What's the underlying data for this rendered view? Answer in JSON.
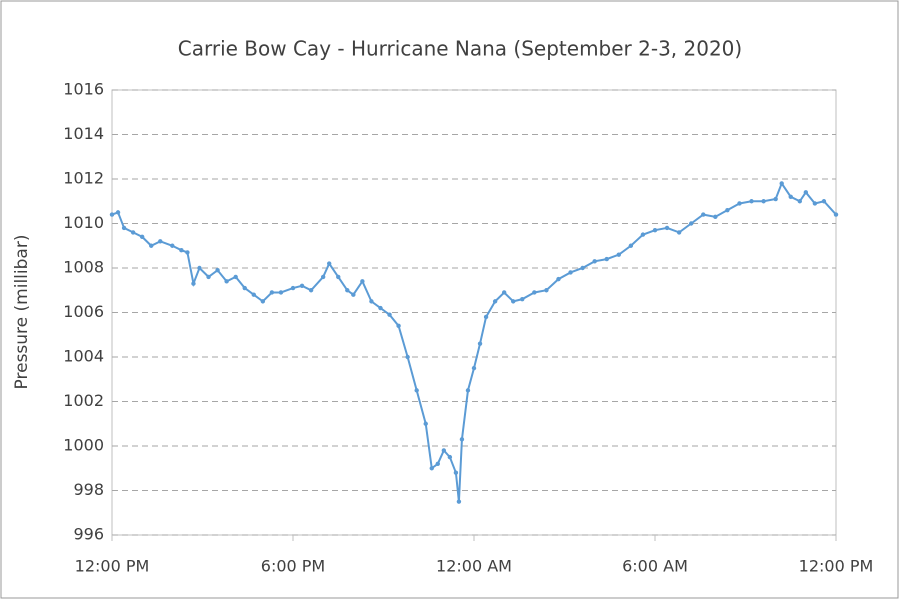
{
  "chart_data": {
    "type": "line",
    "title": "Carrie Bow Cay - Hurricane Nana (September 2-3, 2020)",
    "y_label": "Pressure (millibar)",
    "x": [
      0,
      0.2,
      0.4,
      0.7,
      1.0,
      1.3,
      1.6,
      2.0,
      2.3,
      2.5,
      2.7,
      2.9,
      3.2,
      3.5,
      3.8,
      4.1,
      4.4,
      4.7,
      5.0,
      5.3,
      5.6,
      6.0,
      6.3,
      6.6,
      7.0,
      7.2,
      7.5,
      7.8,
      8.0,
      8.3,
      8.6,
      8.9,
      9.2,
      9.5,
      9.8,
      10.1,
      10.4,
      10.6,
      10.8,
      11.0,
      11.2,
      11.4,
      11.5,
      11.6,
      11.8,
      12.0,
      12.2,
      12.4,
      12.7,
      13.0,
      13.3,
      13.6,
      14.0,
      14.4,
      14.8,
      15.2,
      15.6,
      16.0,
      16.4,
      16.8,
      17.2,
      17.6,
      18.0,
      18.4,
      18.8,
      19.2,
      19.6,
      20.0,
      20.4,
      20.8,
      21.2,
      21.6,
      22.0,
      22.2,
      22.5,
      22.8,
      23.0,
      23.3,
      23.6,
      24.0
    ],
    "series": [
      {
        "name": "Pressure",
        "color": "#5b9bd5",
        "values": [
          1010.4,
          1010.5,
          1009.8,
          1009.6,
          1009.4,
          1009.0,
          1009.2,
          1009.0,
          1008.8,
          1008.7,
          1007.3,
          1008.0,
          1007.6,
          1007.9,
          1007.4,
          1007.6,
          1007.1,
          1006.8,
          1006.5,
          1006.9,
          1006.9,
          1007.1,
          1007.2,
          1007.0,
          1007.6,
          1008.2,
          1007.6,
          1007.0,
          1006.8,
          1007.4,
          1006.5,
          1006.2,
          1005.9,
          1005.4,
          1004.0,
          1002.5,
          1001.0,
          999.0,
          999.2,
          999.8,
          999.5,
          998.8,
          997.5,
          1000.3,
          1002.5,
          1003.5,
          1004.6,
          1005.8,
          1006.5,
          1006.9,
          1006.5,
          1006.6,
          1006.9,
          1007.0,
          1007.5,
          1007.8,
          1008.0,
          1008.3,
          1008.4,
          1008.6,
          1009.0,
          1009.5,
          1009.7,
          1009.8,
          1009.6,
          1010.0,
          1010.4,
          1010.3,
          1010.6,
          1010.9,
          1011.0,
          1011.0,
          1011.1,
          1011.8,
          1011.2,
          1011.0,
          1011.4,
          1010.9,
          1011.0,
          1010.4
        ]
      }
    ],
    "xlim": [
      0,
      24
    ],
    "xticks": [
      {
        "value": 0,
        "label": "12:00 PM"
      },
      {
        "value": 6,
        "label": "6:00 PM"
      },
      {
        "value": 12,
        "label": "12:00 AM"
      },
      {
        "value": 18,
        "label": "6:00 AM"
      },
      {
        "value": 24,
        "label": "12:00 PM"
      }
    ],
    "ylim": [
      996,
      1016
    ],
    "yticks": [
      996,
      998,
      1000,
      1002,
      1004,
      1006,
      1008,
      1010,
      1012,
      1014,
      1016
    ],
    "grid": true
  }
}
